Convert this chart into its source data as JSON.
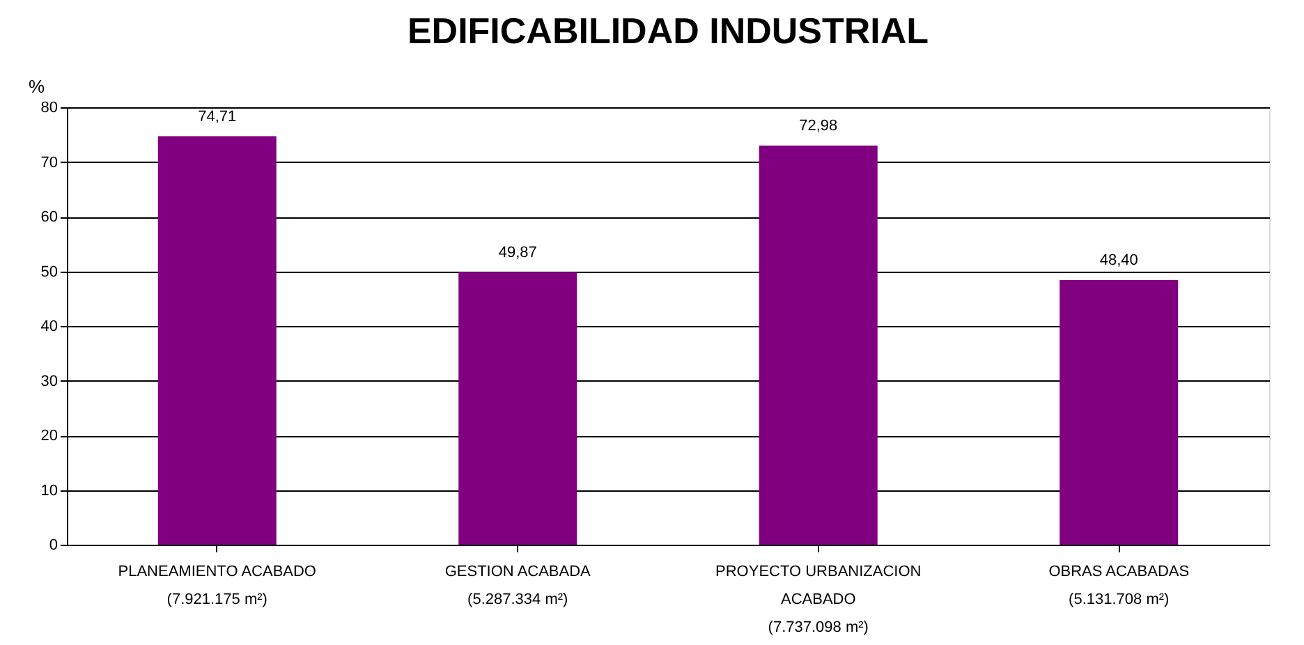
{
  "chart_data": {
    "type": "bar",
    "title": "EDIFICABILIDAD INDUSTRIAL",
    "ylabel": "%",
    "categories": [
      "PLANEAMIENTO ACABADO\n(7.921.175 m²)",
      "GESTION ACABADA\n(5.287.334 m²)",
      "PROYECTO URBANIZACION\nACABADO\n(7.737.098 m²)",
      "OBRAS ACABADAS\n(5.131.708 m²)"
    ],
    "values": [
      74.71,
      49.87,
      72.98,
      48.4
    ],
    "value_labels": [
      "74,71",
      "49,87",
      "72,98",
      "48,40"
    ],
    "color": "#800080",
    "ylim": [
      0,
      80
    ],
    "yticks": [
      0,
      10,
      20,
      30,
      40,
      50,
      60,
      70,
      80
    ],
    "grid": "y"
  }
}
